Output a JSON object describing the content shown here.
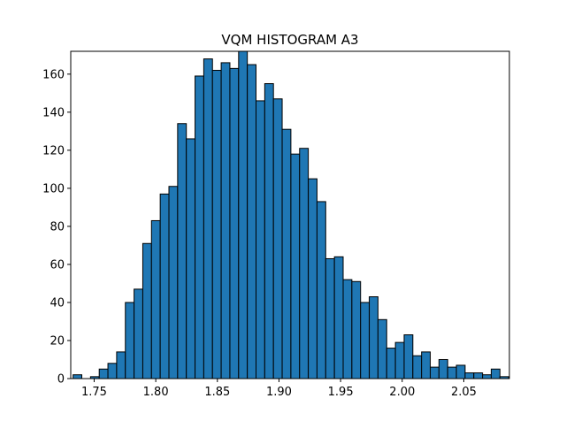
{
  "chart_data": {
    "type": "bar",
    "title": "VQM HISTOGRAM A3",
    "xlabel": "",
    "ylabel": "",
    "xlim": [
      1.731,
      2.087
    ],
    "ylim": [
      0,
      172
    ],
    "bin_start": 1.7329,
    "bin_width": 0.00707,
    "bar_color": "#1f77b4",
    "edge_color": "#000000",
    "grid": false,
    "legend": "none",
    "values": [
      2,
      0,
      1,
      5,
      8,
      14,
      40,
      47,
      71,
      83,
      97,
      101,
      134,
      126,
      159,
      168,
      162,
      166,
      163,
      173,
      165,
      146,
      155,
      147,
      131,
      118,
      121,
      105,
      93,
      63,
      64,
      52,
      51,
      40,
      43,
      31,
      16,
      19,
      23,
      12,
      14,
      6,
      10,
      6,
      7,
      3,
      3,
      2,
      5,
      1
    ],
    "x_ticks": [
      {
        "value": 1.75,
        "label": "1.75"
      },
      {
        "value": 1.8,
        "label": "1.80"
      },
      {
        "value": 1.85,
        "label": "1.85"
      },
      {
        "value": 1.9,
        "label": "1.90"
      },
      {
        "value": 1.95,
        "label": "1.95"
      },
      {
        "value": 2.0,
        "label": "2.00"
      },
      {
        "value": 2.05,
        "label": "2.05"
      }
    ],
    "y_ticks": [
      {
        "value": 0,
        "label": "0"
      },
      {
        "value": 20,
        "label": "20"
      },
      {
        "value": 40,
        "label": "40"
      },
      {
        "value": 60,
        "label": "60"
      },
      {
        "value": 80,
        "label": "80"
      },
      {
        "value": 100,
        "label": "100"
      },
      {
        "value": 120,
        "label": "120"
      },
      {
        "value": 140,
        "label": "140"
      },
      {
        "value": 160,
        "label": "160"
      }
    ]
  }
}
